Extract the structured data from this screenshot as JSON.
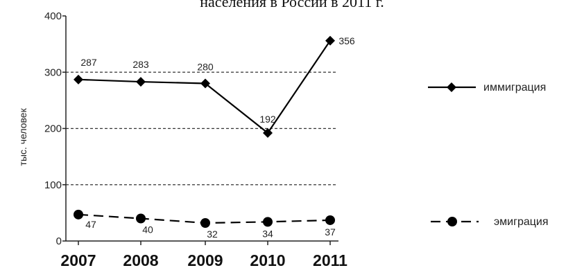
{
  "chart_data": {
    "type": "line",
    "title": "населения в России в 2011 г.",
    "ylabel": "тыс. человек",
    "xlabel": "",
    "x": [
      "2007",
      "2008",
      "2009",
      "2010",
      "2011"
    ],
    "ylim": [
      0,
      400
    ],
    "yticks": [
      "0",
      "100",
      "200",
      "300",
      "400"
    ],
    "grid": "dashed horizontal lines at 100, 200, 300",
    "legend_position": "right",
    "series": [
      {
        "name": "иммиграция",
        "marker": "diamond",
        "line_style": "solid",
        "color": "#000000",
        "values": [
          287,
          283,
          280,
          192,
          356
        ],
        "labels": [
          "287",
          "283",
          "280",
          "192",
          "356"
        ]
      },
      {
        "name": "эмиграция",
        "marker": "circle",
        "line_style": "dashed",
        "color": "#000000",
        "values": [
          47,
          40,
          32,
          34,
          37
        ],
        "labels": [
          "47",
          "40",
          "32",
          "34",
          "37"
        ]
      }
    ]
  }
}
